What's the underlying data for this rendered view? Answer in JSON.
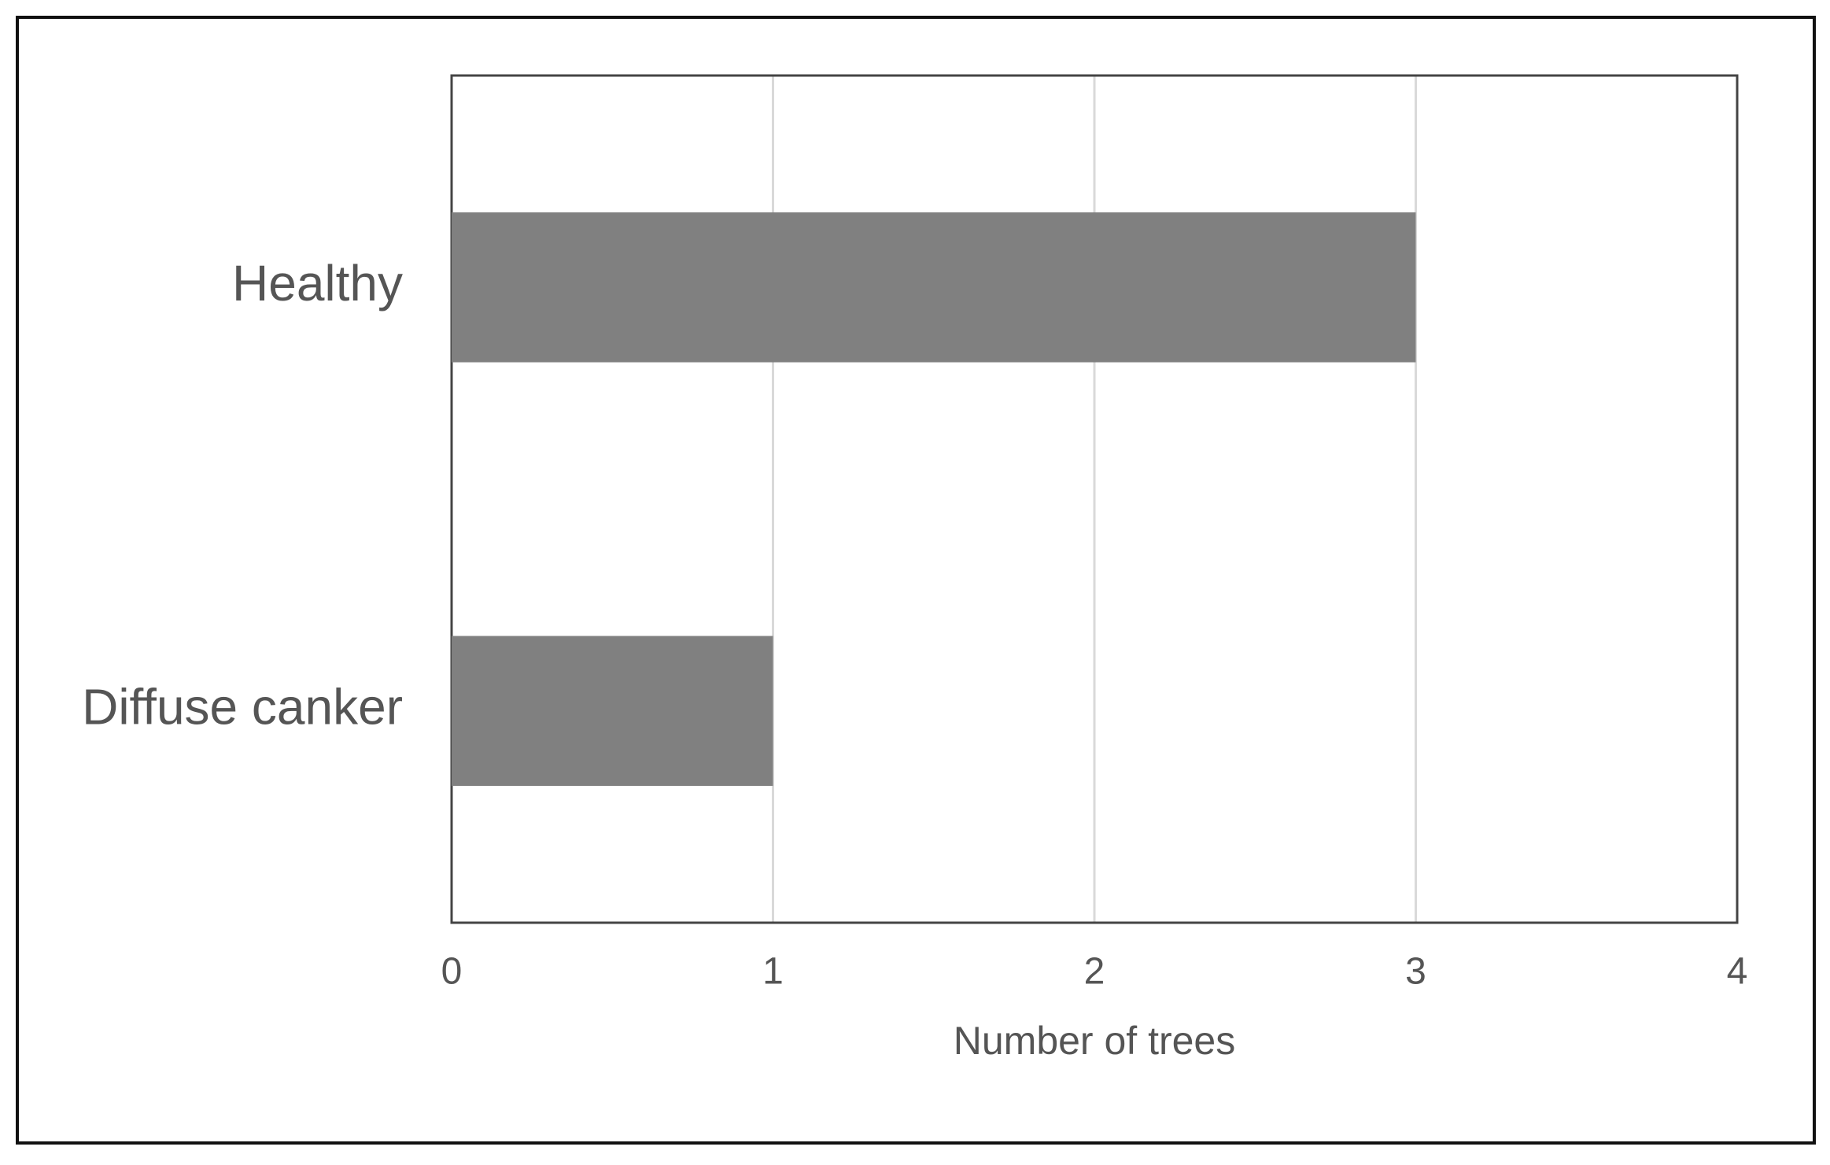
{
  "chart_data": {
    "type": "bar",
    "orientation": "horizontal",
    "categories": [
      "Healthy",
      "Diffuse canker"
    ],
    "values": [
      3,
      1
    ],
    "color": "#808080",
    "xlabel": "Number of trees",
    "xlim": [
      0,
      4
    ],
    "xticks": [
      0,
      1,
      2,
      3,
      4
    ],
    "grid": true
  }
}
